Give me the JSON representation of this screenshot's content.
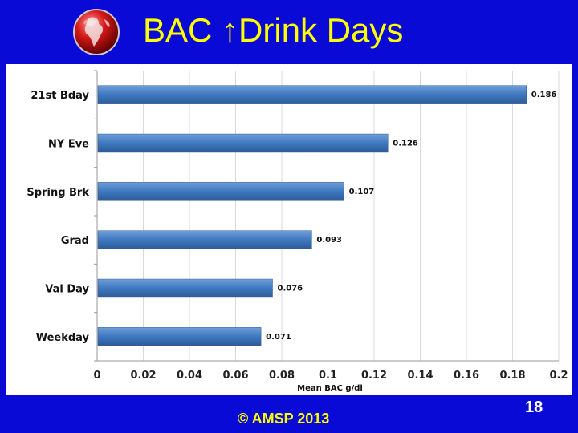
{
  "slide": {
    "title": "BAC ↑Drink Days",
    "footer": "© AMSP 2013",
    "page_number": "18"
  },
  "colors": {
    "background": "#0a0ad6",
    "title": "#ffff00",
    "bar": "#3f78bf",
    "grid": "#d9d9d9"
  },
  "chart_data": {
    "type": "bar",
    "orientation": "horizontal",
    "categories": [
      "21st Bday",
      "NY Eve",
      "Spring Brk",
      "Grad",
      "Val Day",
      "Weekday"
    ],
    "values": [
      0.186,
      0.126,
      0.107,
      0.093,
      0.076,
      0.071
    ],
    "data_labels": [
      "0.186",
      "0.126",
      "0.107",
      "0.093",
      "0.076",
      "0.071"
    ],
    "xlabel": "Mean BAC g/dl",
    "ylabel": "",
    "xlim": [
      0,
      0.2
    ],
    "xticks": [
      "0",
      "0.02",
      "0.04",
      "0.06",
      "0.08",
      "0.1",
      "0.12",
      "0.14",
      "0.16",
      "0.18",
      "0.2"
    ],
    "grid": true,
    "legend": "none"
  }
}
